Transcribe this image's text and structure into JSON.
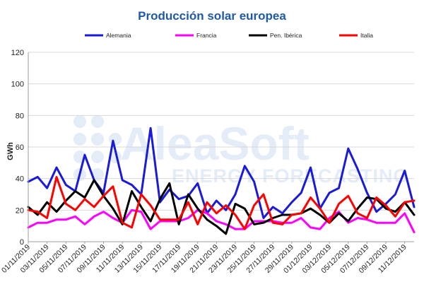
{
  "chart_data": {
    "type": "line",
    "title": "Producción solar europea",
    "ylabel": "GWh",
    "xlabel": "",
    "ylim": [
      0,
      120
    ],
    "yticks": [
      "0",
      "20",
      "40",
      "60",
      "80",
      "100",
      "120"
    ],
    "x": [
      "01/11/2019",
      "02/11/2019",
      "03/11/2019",
      "04/11/2019",
      "05/11/2019",
      "06/11/2019",
      "07/11/2019",
      "08/11/2019",
      "09/11/2019",
      "10/11/2019",
      "11/11/2019",
      "12/11/2019",
      "13/11/2019",
      "14/11/2019",
      "15/11/2019",
      "16/11/2019",
      "17/11/2019",
      "18/11/2019",
      "19/11/2019",
      "20/11/2019",
      "21/11/2019",
      "22/11/2019",
      "23/11/2019",
      "24/11/2019",
      "25/11/2019",
      "26/11/2019",
      "27/11/2019",
      "28/11/2019",
      "29/11/2019",
      "30/11/2019",
      "01/12/2019",
      "02/12/2019",
      "03/12/2019",
      "04/12/2019",
      "05/12/2019",
      "06/12/2019",
      "07/12/2019",
      "08/12/2019",
      "09/12/2019",
      "10/12/2019",
      "11/12/2019",
      "12/12/2019"
    ],
    "xticks": [
      "01/11/2019",
      "03/11/2019",
      "05/11/2019",
      "07/11/2019",
      "09/11/2019",
      "11/11/2019",
      "13/11/2019",
      "15/11/2019",
      "17/11/2019",
      "19/11/2019",
      "21/11/2019",
      "23/11/2019",
      "25/11/2019",
      "27/11/2019",
      "29/11/2019",
      "01/12/2019",
      "03/12/2019",
      "05/12/2019",
      "07/12/2019",
      "09/12/2019",
      "11/12/2019"
    ],
    "grid": true,
    "legend_position": "top",
    "series": [
      {
        "name": "Alemania",
        "color": "#1a1ad9",
        "values": [
          38,
          41,
          34,
          47,
          36,
          32,
          55,
          39,
          31,
          64,
          39,
          36,
          30,
          72,
          25,
          33,
          27,
          29,
          37,
          18,
          26,
          20,
          30,
          48,
          38,
          15,
          22,
          18,
          25,
          31,
          47,
          21,
          31,
          34,
          59,
          46,
          31,
          19,
          24,
          30,
          45,
          22
        ]
      },
      {
        "name": "Francia",
        "color": "#ff00ff",
        "values": [
          9,
          12,
          12,
          14,
          14,
          16,
          11,
          16,
          19,
          15,
          12,
          20,
          19,
          8,
          13,
          13,
          13,
          15,
          20,
          18,
          13,
          11,
          8,
          8,
          13,
          13,
          13,
          12,
          12,
          15,
          9,
          8,
          15,
          19,
          12,
          15,
          14,
          12,
          12,
          12,
          18,
          6
        ]
      },
      {
        "name": "Pen. Ibérica",
        "color": "#000000",
        "values": [
          22,
          17,
          25,
          19,
          26,
          32,
          28,
          39,
          29,
          21,
          11,
          32,
          22,
          13,
          27,
          37,
          11,
          30,
          21,
          14,
          10,
          5,
          24,
          21,
          11,
          12,
          15,
          17,
          17,
          18,
          21,
          17,
          12,
          18,
          13,
          21,
          28,
          27,
          21,
          19,
          25,
          17
        ]
      },
      {
        "name": "Italia",
        "color": "#ff0000",
        "values": [
          20,
          19,
          15,
          41,
          24,
          20,
          27,
          22,
          29,
          35,
          12,
          9,
          30,
          23,
          14,
          14,
          14,
          25,
          11,
          25,
          18,
          23,
          17,
          8,
          23,
          30,
          12,
          11,
          17,
          18,
          28,
          21,
          12,
          24,
          29,
          18,
          15,
          28,
          23,
          16,
          25,
          26
        ]
      }
    ]
  },
  "watermark": {
    "main": "AleaSoft",
    "sub": "ENERGY FORECASTING"
  }
}
